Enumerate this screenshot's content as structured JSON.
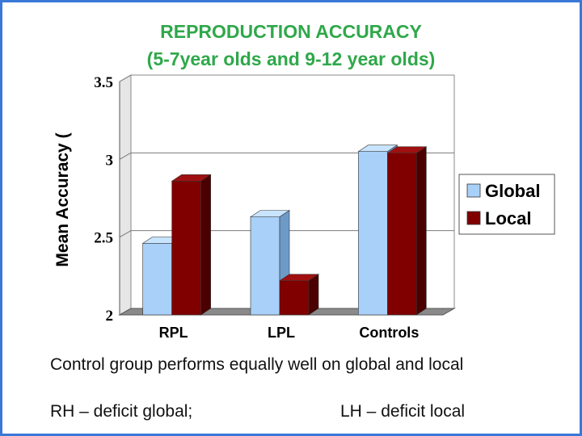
{
  "chart_data": {
    "type": "bar",
    "title": "REPRODUCTION ACCURACY",
    "subtitle": "(5-7year olds and 9-12 year olds)",
    "ylabel": "Mean Accuracy (",
    "categories": [
      "RPL",
      "LPL",
      "Controls"
    ],
    "series": [
      {
        "name": "Global",
        "values": [
          2.46,
          2.63,
          3.05
        ]
      },
      {
        "name": "Local",
        "values": [
          2.86,
          2.22,
          3.04
        ]
      }
    ],
    "ylim": [
      2,
      3.5
    ],
    "yticks": [
      "2",
      "2.5",
      "3",
      "3.5"
    ],
    "grid": true,
    "legend": "right",
    "colors": {
      "Global": "#a8d0f8",
      "Local": "#800000"
    }
  },
  "captions": {
    "line1": "Control group performs equally well on global and local",
    "rh": "RH – deficit global;",
    "lh": "LH – deficit local"
  }
}
